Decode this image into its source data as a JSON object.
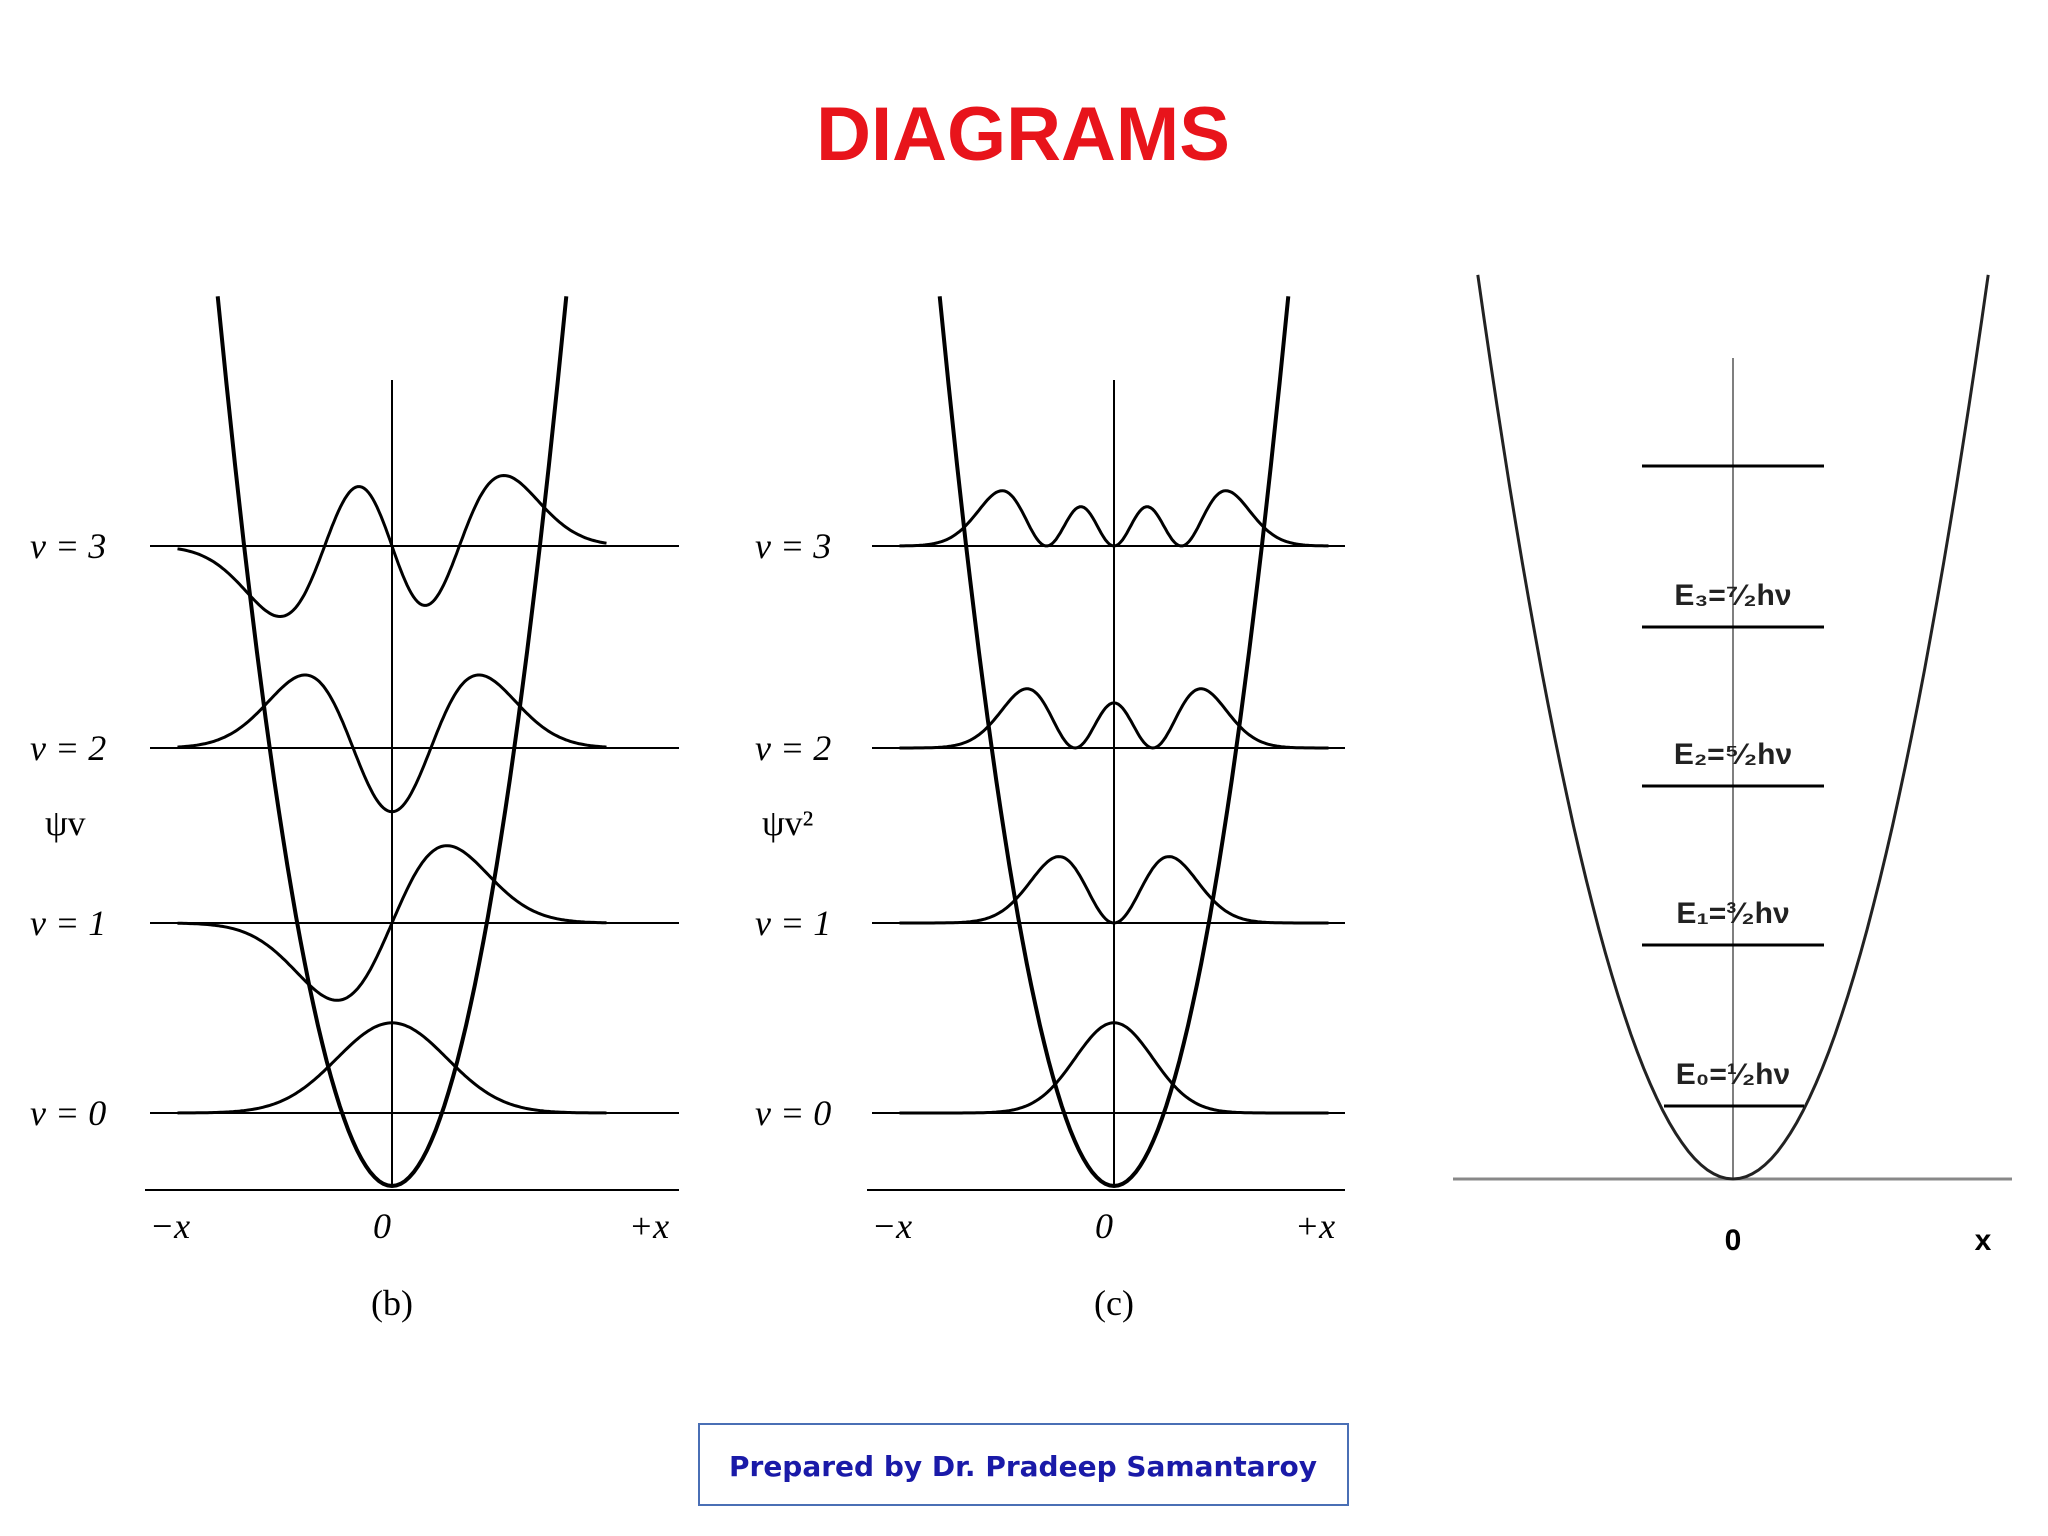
{
  "header": {
    "title": "DIAGRAMS"
  },
  "panels": [
    {
      "levels": [
        "v = 3",
        "v = 2",
        "v = 1",
        "v = 0"
      ],
      "ylabel": "ψv",
      "xlabels": [
        "−x",
        "0",
        "+x"
      ],
      "caption": "(b)"
    },
    {
      "levels": [
        "v = 3",
        "v = 2",
        "v = 1",
        "v = 0"
      ],
      "ylabel": "ψv²",
      "xlabels": [
        "−x",
        "0",
        "+x"
      ],
      "caption": "(c)"
    },
    {
      "energies": [
        "E₃=⁷⁄₂hν",
        "E₂=⁵⁄₂hν",
        "E₁=³⁄₂hν",
        "E₀=¹⁄₂hν"
      ],
      "xlabels": [
        "0",
        "x"
      ]
    }
  ],
  "footer": {
    "text": "Prepared by Dr. Pradeep Samantaroy"
  }
}
